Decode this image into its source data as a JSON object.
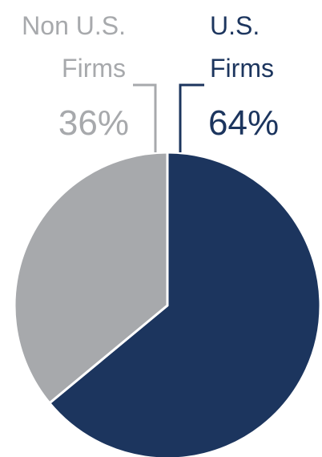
{
  "chart_data": {
    "type": "pie",
    "title": "",
    "slices": [
      {
        "name_line1": "U.S.",
        "name_line2": "Firms",
        "value": 64,
        "value_label": "64%",
        "color": "#1c355e",
        "label_color": "#1c355e"
      },
      {
        "name_line1": "Non U.S.",
        "name_line2": "Firms",
        "value": 36,
        "value_label": "36%",
        "color": "#a7a9ac",
        "label_color": "#a7a9ac"
      }
    ],
    "start_angle": "top (12 o'clock)",
    "direction": "clockwise",
    "legend": "none",
    "leader_lines": true
  }
}
